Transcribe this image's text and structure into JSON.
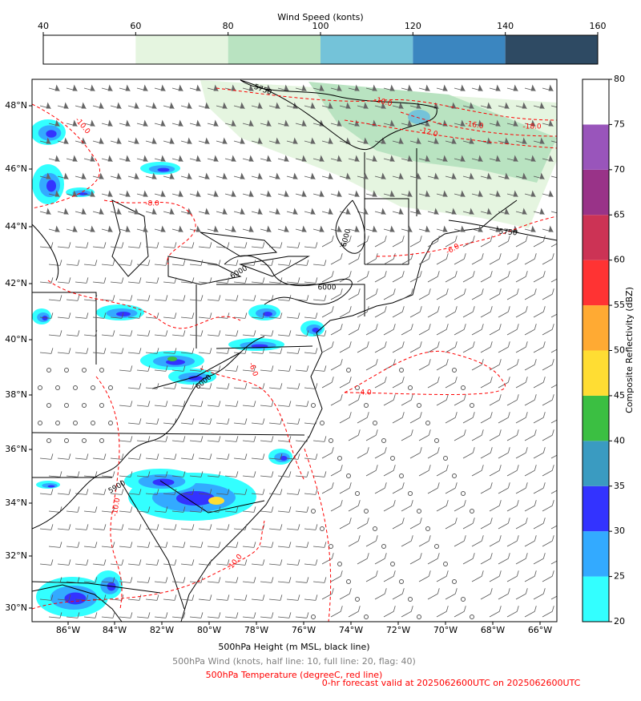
{
  "wind_colorbar": {
    "label": "Wind Speed (konts)",
    "ticks": [
      40,
      60,
      80,
      100,
      120,
      140,
      160
    ],
    "colors": [
      "#ffffff",
      "#e5f5e0",
      "#b9e3c1",
      "#74c3d9",
      "#3b86c0",
      "#2e4a63"
    ]
  },
  "reflectivity_colorbar": {
    "label": "Composite Reflectivity (dBZ)",
    "ticks": [
      20,
      25,
      30,
      35,
      40,
      45,
      50,
      55,
      60,
      65,
      70,
      75,
      80
    ],
    "colors": [
      "#33ffff",
      "#33aaff",
      "#3333ff",
      "#3a9bc1",
      "#3bbf42",
      "#ffdd33",
      "#ffaa33",
      "#ff3333",
      "#cc3355",
      "#993388",
      "#9955bb",
      "#ffffff"
    ]
  },
  "map": {
    "lon_ticks": [
      "86°W",
      "84°W",
      "82°W",
      "80°W",
      "78°W",
      "76°W",
      "74°W",
      "72°W",
      "70°W",
      "68°W",
      "66°W"
    ],
    "lat_ticks": [
      "30°N",
      "32°N",
      "34°N",
      "36°N",
      "38°N",
      "40°N",
      "42°N",
      "44°N",
      "46°N",
      "48°N"
    ],
    "height_labels": [
      "5750",
      "5750",
      "6000",
      "6000",
      "6000",
      "6000",
      "5900"
    ],
    "temperature_labels": [
      "-10.0",
      "-8.0",
      "-10.0",
      "-12.0",
      "-16.0",
      "-18.0",
      "-6.0",
      "-6.0",
      "-4.0",
      "-10.0",
      "-10.0"
    ],
    "height_color": "#000000",
    "temperature_color": "#ff0000"
  },
  "legend": {
    "height": "500hPa Height (m MSL, black line)",
    "wind": "500hPa Wind (knots, half line: 10, full line: 20, flag: 40)",
    "temperature": "500hPa Temperature (degreeC, red line)",
    "valid": "0-hr forecast valid at 2025062600UTC on 2025062600UTC"
  }
}
